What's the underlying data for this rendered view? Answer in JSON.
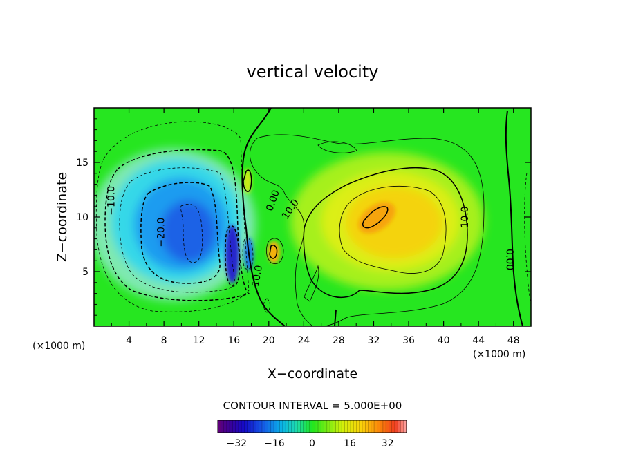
{
  "chart_data": {
    "type": "contour",
    "title": "vertical velocity",
    "xlabel": "X−coordinate",
    "ylabel": "Z−coordinate",
    "x_unit_left": "(×1000 m)",
    "x_unit_right": "(×1000 m)",
    "xlim": [
      0,
      50
    ],
    "ylim": [
      0,
      20
    ],
    "x_ticks": [
      "4",
      "8",
      "12",
      "16",
      "20",
      "24",
      "28",
      "32",
      "36",
      "40",
      "44",
      "48"
    ],
    "y_ticks": [
      "5",
      "10",
      "15"
    ],
    "contour_interval_text": "CONTOUR INTERVAL = 5.000E+00",
    "contour_interval": 5,
    "colorbar": {
      "range": [
        -40,
        40
      ],
      "tick_values": [
        -32,
        -16,
        0,
        16,
        32
      ],
      "tick_labels": [
        "−32",
        "−16",
        "0",
        "16",
        "32"
      ]
    },
    "contour_labels": [
      {
        "text": "−10.0",
        "x": 2.0,
        "y": 11.5
      },
      {
        "text": "−20.0",
        "x": 7.7,
        "y": 8.6
      },
      {
        "text": "0.00",
        "x": 20.5,
        "y": 11.5
      },
      {
        "text": "10.0",
        "x": 22.5,
        "y": 10.7
      },
      {
        "text": "10.0",
        "x": 18.7,
        "y": 4.6
      },
      {
        "text": "10.0",
        "x": 42.5,
        "y": 10.0
      },
      {
        "text": "0.00",
        "x": 47.5,
        "y": 6.1
      }
    ],
    "extrema": [
      {
        "kind": "min",
        "x": 11.5,
        "y": 8.5,
        "value": -28
      },
      {
        "kind": "min",
        "x": 15.5,
        "y": 7.0,
        "value": -38
      },
      {
        "kind": "max",
        "x": 20.5,
        "y": 6.8,
        "value": 15
      },
      {
        "kind": "max",
        "x": 32.5,
        "y": 10.5,
        "value": 22
      }
    ]
  },
  "colors": {
    "field_background": "#1ee81e",
    "frame": "#000000"
  }
}
